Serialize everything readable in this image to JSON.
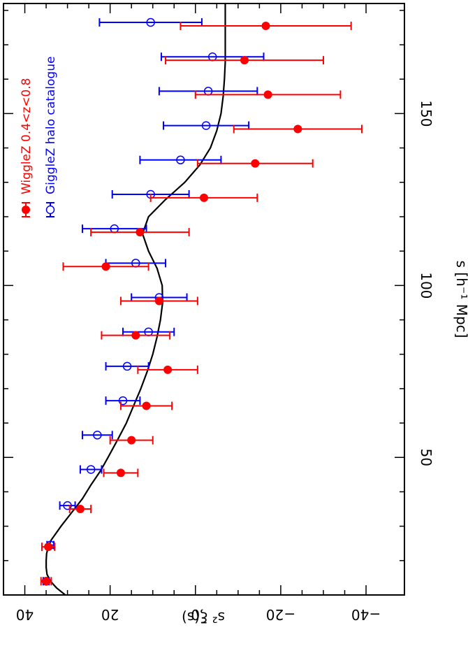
{
  "chart_data": {
    "type": "scatter",
    "orientation": "rotated-90-clockwise",
    "xlabel": "s [h⁻¹ Mpc]",
    "ylabel": "s² ξ(s)",
    "xlim": [
      10,
      182
    ],
    "ylim": [
      -49,
      45
    ],
    "x_ticks": [
      50,
      100,
      150
    ],
    "y_ticks": [
      40,
      20,
      0,
      -20,
      -40
    ],
    "y_tick_labels": [
      "40",
      "20",
      "0",
      "−20",
      "−40"
    ],
    "grid": false,
    "legend_position": "top-right",
    "colors": {
      "wigglez": "#ff0000",
      "giggle": "#0000ff",
      "model": "#000000"
    },
    "series": [
      {
        "name": "WiggleZ 0.4<z<0.8",
        "marker": "filled-circle",
        "color": "#ff0000",
        "points": [
          {
            "x": 14.0,
            "y": 35.0,
            "err": 1.2
          },
          {
            "x": 24.0,
            "y": 34.5,
            "err": 1.5
          },
          {
            "x": 35.0,
            "y": 27.0,
            "err": 2.5
          },
          {
            "x": 45.5,
            "y": 17.5,
            "err": 4.0
          },
          {
            "x": 55.0,
            "y": 15.0,
            "err": 5.0
          },
          {
            "x": 65.0,
            "y": 11.5,
            "err": 6.0
          },
          {
            "x": 75.5,
            "y": 6.5,
            "err": 7.0
          },
          {
            "x": 85.5,
            "y": 14.0,
            "err": 8.0
          },
          {
            "x": 95.5,
            "y": 8.5,
            "err": 9.0
          },
          {
            "x": 105.5,
            "y": 21.0,
            "err": 10.0
          },
          {
            "x": 115.5,
            "y": 13.0,
            "err": 11.5
          },
          {
            "x": 125.5,
            "y": -2.0,
            "err": 12.5
          },
          {
            "x": 135.5,
            "y": -14.0,
            "err": 13.5
          },
          {
            "x": 145.5,
            "y": -24.0,
            "err": 15.0
          },
          {
            "x": 155.5,
            "y": -17.0,
            "err": 17.0
          },
          {
            "x": 165.5,
            "y": -11.5,
            "err": 18.5
          },
          {
            "x": 175.5,
            "y": -16.5,
            "err": 20.0
          }
        ]
      },
      {
        "name": "GiggleZ halo catalogue",
        "marker": "open-circle",
        "color": "#0000ff",
        "points": [
          {
            "x": 14.0,
            "y": 35.0,
            "err": 0.7
          },
          {
            "x": 24.5,
            "y": 34.0,
            "err": 0.8
          },
          {
            "x": 36.0,
            "y": 30.0,
            "err": 1.8
          },
          {
            "x": 46.5,
            "y": 24.5,
            "err": 2.5
          },
          {
            "x": 56.5,
            "y": 23.0,
            "err": 3.5
          },
          {
            "x": 66.5,
            "y": 17.0,
            "err": 4.0
          },
          {
            "x": 76.5,
            "y": 16.0,
            "err": 5.0
          },
          {
            "x": 86.5,
            "y": 11.0,
            "err": 6.0
          },
          {
            "x": 96.5,
            "y": 8.5,
            "err": 6.5
          },
          {
            "x": 106.5,
            "y": 14.0,
            "err": 7.0
          },
          {
            "x": 116.5,
            "y": 19.0,
            "err": 7.5
          },
          {
            "x": 126.5,
            "y": 10.5,
            "err": 9.0
          },
          {
            "x": 136.5,
            "y": 3.5,
            "err": 9.5
          },
          {
            "x": 146.5,
            "y": -2.5,
            "err": 10.0
          },
          {
            "x": 156.5,
            "y": -3.0,
            "err": 11.5
          },
          {
            "x": 166.5,
            "y": -4.0,
            "err": 12.0
          },
          {
            "x": 176.5,
            "y": 10.5,
            "err": 12.0
          }
        ]
      },
      {
        "name": "",
        "type": "line",
        "color": "#000000",
        "x": [
          10,
          12,
          14,
          16,
          18,
          20,
          22,
          24,
          26,
          30,
          34,
          38,
          42,
          46,
          50,
          55,
          60,
          65,
          70,
          75,
          80,
          85,
          90,
          95,
          100,
          105,
          110,
          115,
          120,
          125,
          130,
          135,
          140,
          145,
          150,
          155,
          160,
          165,
          170,
          175,
          182
        ],
        "y": [
          30.5,
          32.5,
          34.0,
          34.8,
          35.0,
          35.0,
          34.9,
          34.5,
          33.8,
          31.5,
          29.0,
          26.5,
          24.5,
          22.3,
          20.5,
          18.3,
          16.2,
          14.5,
          12.8,
          11.3,
          10.0,
          9.0,
          8.2,
          7.7,
          7.8,
          9.0,
          11.0,
          12.4,
          11.0,
          7.0,
          2.5,
          -1.0,
          -3.5,
          -5.0,
          -6.0,
          -6.5,
          -6.8,
          -7.0,
          -7.0,
          -7.0,
          -7.0
        ]
      }
    ]
  }
}
